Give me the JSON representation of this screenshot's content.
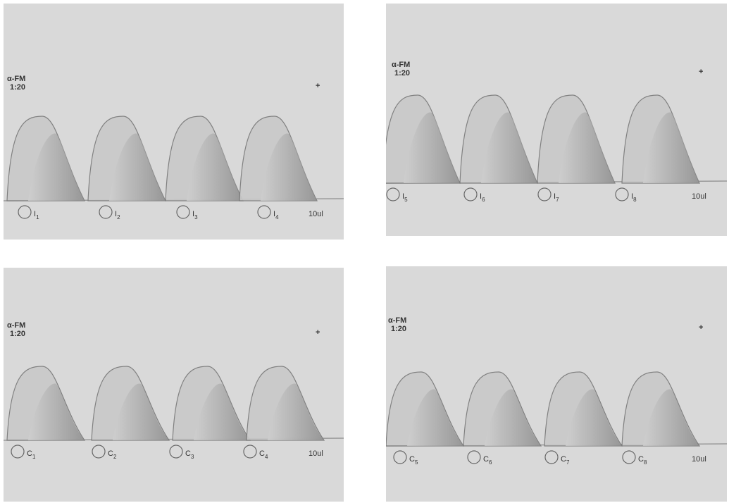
{
  "panels": [
    {
      "antiserum": "α-FM",
      "dilution": "1:20",
      "anode": "+",
      "wells": [
        {
          "letter": "I",
          "sub": "1"
        },
        {
          "letter": "I",
          "sub": "2"
        },
        {
          "letter": "I",
          "sub": "3"
        },
        {
          "letter": "I",
          "sub": "4"
        }
      ],
      "volume": "10ul"
    },
    {
      "antiserum": "α-FM",
      "dilution": "1:20",
      "anode": "+",
      "wells": [
        {
          "letter": "I",
          "sub": "5"
        },
        {
          "letter": "I",
          "sub": "6"
        },
        {
          "letter": "I",
          "sub": "7"
        },
        {
          "letter": "I",
          "sub": "8"
        }
      ],
      "volume": "10ul"
    },
    {
      "antiserum": "α-FM",
      "dilution": "1:20",
      "anode": "+",
      "wells": [
        {
          "letter": "C",
          "sub": "1"
        },
        {
          "letter": "C",
          "sub": "2"
        },
        {
          "letter": "C",
          "sub": "3"
        },
        {
          "letter": "C",
          "sub": "4"
        }
      ],
      "volume": "10ul"
    },
    {
      "antiserum": "α-FM",
      "dilution": "1:20",
      "anode": "+",
      "wells": [
        {
          "letter": "C",
          "sub": "5"
        },
        {
          "letter": "C",
          "sub": "6"
        },
        {
          "letter": "C",
          "sub": "7"
        },
        {
          "letter": "C",
          "sub": "8"
        }
      ],
      "volume": "10ul"
    }
  ]
}
